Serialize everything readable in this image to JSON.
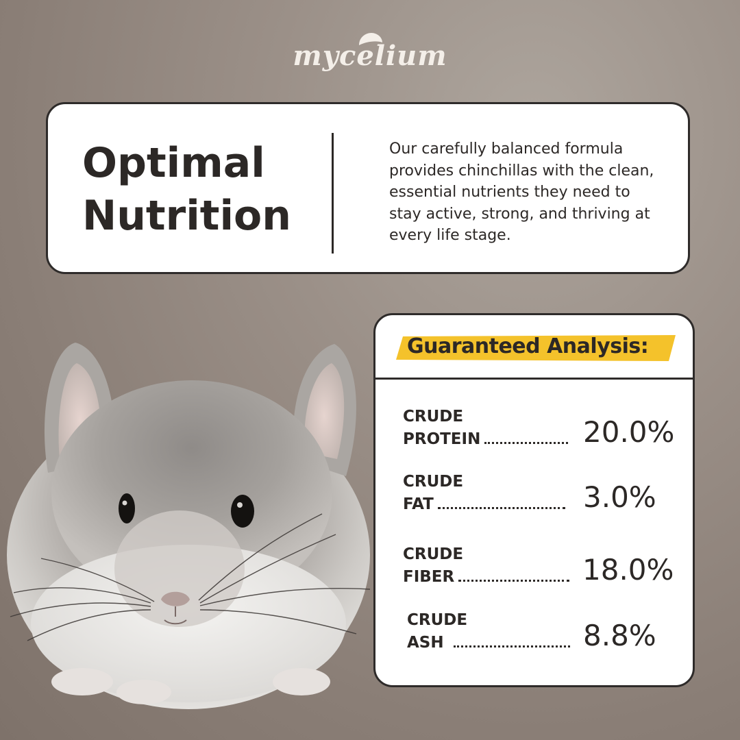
{
  "brand": {
    "logo_text": "mycelium",
    "logo_icon": "mushroom-cap-icon"
  },
  "intro": {
    "title_line1": "Optimal",
    "title_line2": "Nutrition",
    "description": "Our carefully balanced formula provides chinchillas with the clean, essential nutrients they need to stay active, strong, and thriving at every life stage."
  },
  "analysis": {
    "title": "Guaranteed Analysis:",
    "highlight_color": "#f4c22b",
    "items": [
      {
        "line1": "CRUDE",
        "line2": "PROTEIN",
        "value": "20.0%"
      },
      {
        "line1": "CRUDE",
        "line2": "FAT",
        "value": "3.0%"
      },
      {
        "line1": "CRUDE",
        "line2": "FIBER",
        "value": "18.0%"
      },
      {
        "line1": "CRUDE",
        "line2": "ASH",
        "value": "8.8%"
      }
    ]
  },
  "photo": {
    "subject_icon": "chinchilla-illustration"
  }
}
